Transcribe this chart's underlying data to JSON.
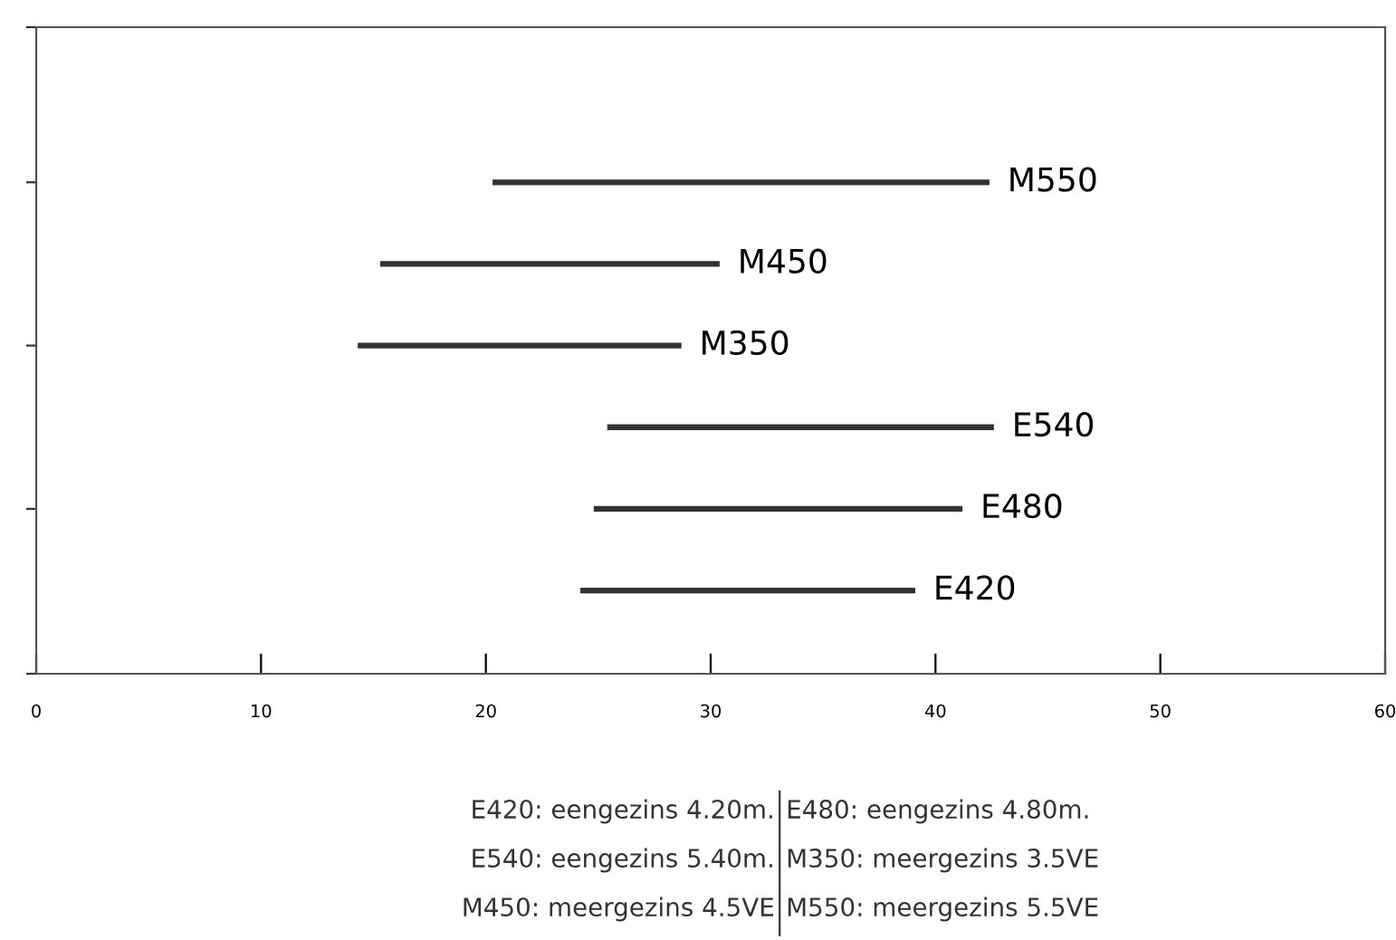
{
  "chart_data": {
    "type": "bar",
    "orientation": "horizontal",
    "categories": [
      "M550",
      "M450",
      "M350",
      "E540",
      "E480",
      "E420"
    ],
    "base": [
      20.3,
      15.3,
      14.3,
      25.4,
      24.8,
      24.2
    ],
    "values": [
      22.1,
      15.1,
      14.4,
      17.2,
      16.4,
      14.9
    ],
    "color": "#333333",
    "xlim": [
      0,
      60
    ],
    "xticks": [
      0,
      10,
      20,
      30,
      40,
      50,
      60
    ],
    "tick_labels": "x",
    "grid": false,
    "annotations": [
      "E420: eengezins 4.20m.",
      "E480: eengezins 4.80m.",
      "E540: eengezins 5.40m.",
      "M350: meergezins 3.5VE",
      "M450: meergezins 4.5VE",
      "M550: meergezins 5.5VE"
    ]
  }
}
